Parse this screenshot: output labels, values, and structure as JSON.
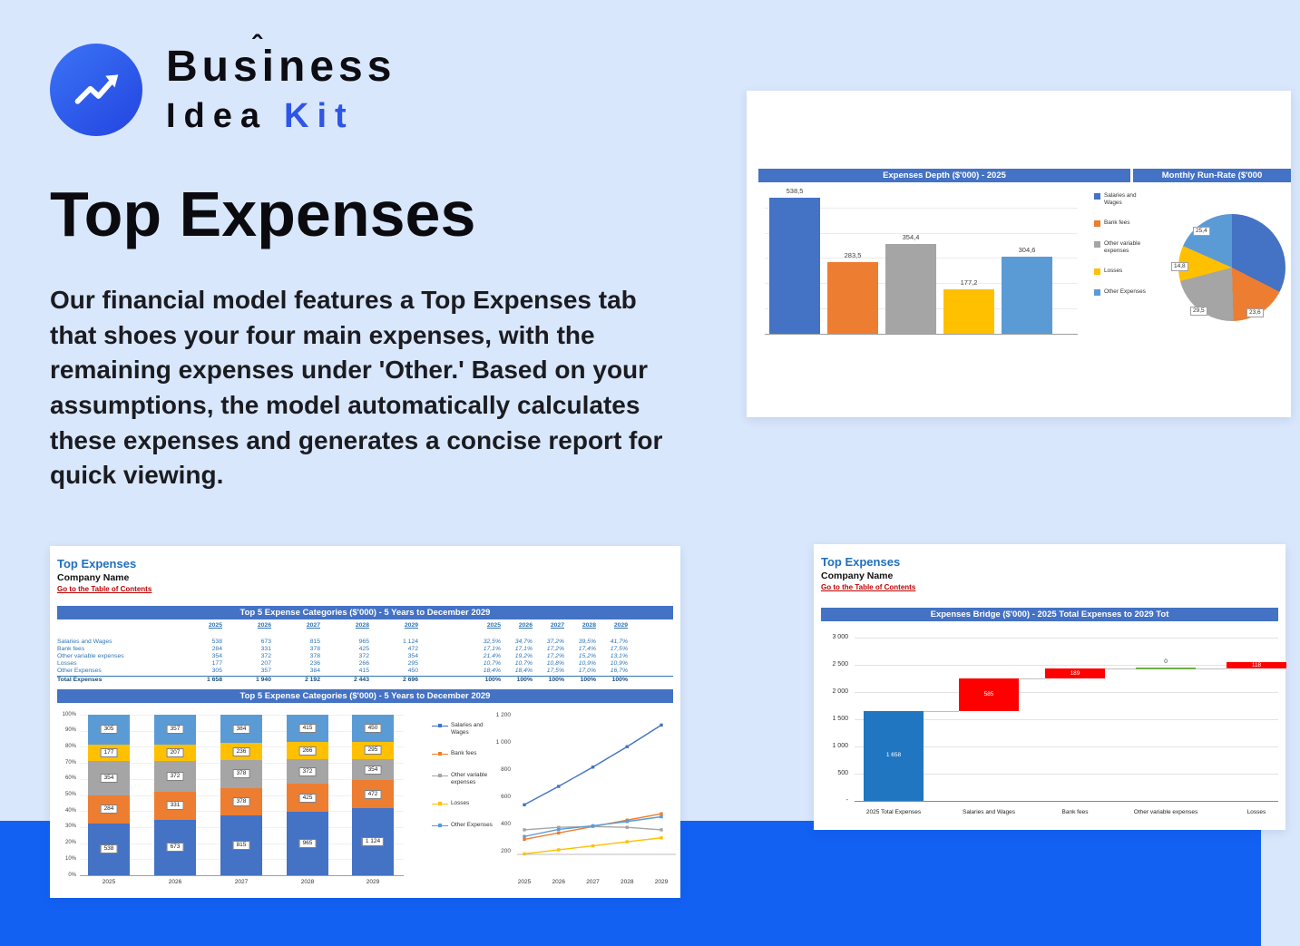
{
  "logo": {
    "word1": "Business",
    "caret": "ˆ",
    "word2": "Idea",
    "word3": "Kit"
  },
  "hero": {
    "heading": "Top Expenses",
    "paragraph": "Our financial model features a Top Expenses tab that shoes your four main expenses, with the remaining expenses under 'Other.' Based on your assumptions, the model automatically calculates these expenses and generates a concise report for quick viewing."
  },
  "sheet_common": {
    "title": "Top Expenses",
    "company": "Company Name",
    "toc": "Go to the Table of Contents"
  },
  "card_charts": {
    "header_left": "Expenses Depth ($'000) - 2025",
    "header_right": "Monthly Run-Rate ($'000"
  },
  "legend_items": [
    "Salaries and Wages",
    "Bank fees",
    "Other variable expenses",
    "Losses",
    "Other Expenses"
  ],
  "colors": {
    "series": [
      "#4472C4",
      "#ED7D31",
      "#A5A5A5",
      "#FFC000",
      "#5B9BD5"
    ],
    "band_blue": "#1261F3",
    "accent_blue": "#2F55E8",
    "header_bar": "#4472C4",
    "waterfall_total": "#2076C0",
    "waterfall_increase": "#FF0000",
    "waterfall_zero": "#70AD47",
    "toc_red": "#C00000",
    "sheet_title_blue": "#1F6FBF"
  },
  "sheet1": {
    "header_table": "Top 5 Expense Categories ($'000) - 5 Years to December 2029",
    "header_chart": "Top 5 Expense Categories ($'000) - 5 Years to December 2029",
    "years": [
      "2025",
      "2026",
      "2027",
      "2028",
      "2029"
    ],
    "rows": [
      {
        "label": "Salaries and Wages",
        "values": [
          "538",
          "673",
          "815",
          "965",
          "1 124"
        ],
        "pcts": [
          "32,5%",
          "34,7%",
          "37,2%",
          "39,5%",
          "41,7%"
        ]
      },
      {
        "label": "Bank fees",
        "values": [
          "284",
          "331",
          "378",
          "425",
          "472"
        ],
        "pcts": [
          "17,1%",
          "17,1%",
          "17,2%",
          "17,4%",
          "17,5%"
        ]
      },
      {
        "label": "Other variable expenses",
        "values": [
          "354",
          "372",
          "378",
          "372",
          "354"
        ],
        "pcts": [
          "21,4%",
          "19,2%",
          "17,2%",
          "15,2%",
          "13,1%"
        ]
      },
      {
        "label": "Losses",
        "values": [
          "177",
          "207",
          "236",
          "266",
          "295"
        ],
        "pcts": [
          "10,7%",
          "10,7%",
          "10,8%",
          "10,9%",
          "10,9%"
        ]
      },
      {
        "label": "Other Expenses",
        "values": [
          "305",
          "357",
          "384",
          "415",
          "450"
        ],
        "pcts": [
          "18,4%",
          "18,4%",
          "17,5%",
          "17,0%",
          "16,7%"
        ]
      }
    ],
    "total": {
      "label": "Total Expenses",
      "values": [
        "1 658",
        "1 940",
        "2 192",
        "2 443",
        "2 696"
      ],
      "pcts": [
        "100%",
        "100%",
        "100%",
        "100%",
        "100%"
      ]
    }
  },
  "sheet2": {
    "header_chart": "Expenses Bridge ($'000) - 2025 Total Expenses to 2029 Tot"
  },
  "chart_data": [
    {
      "id": "expenses_depth_2025",
      "type": "bar",
      "title": "Expenses Depth ($'000) - 2025",
      "categories": [
        "Salaries and Wages",
        "Bank fees",
        "Other variable expenses",
        "Losses",
        "Other Expenses"
      ],
      "values": [
        538.5,
        283.5,
        354.4,
        177.2,
        304.6
      ],
      "labels": [
        "538,5",
        "283,5",
        "354,4",
        "177,2",
        "304,6"
      ],
      "colors": [
        "#4472C4",
        "#ED7D31",
        "#A5A5A5",
        "#FFC000",
        "#5B9BD5"
      ],
      "ylim": [
        0,
        600
      ],
      "legend_position": "right",
      "grid": true
    },
    {
      "id": "monthly_run_rate",
      "type": "pie",
      "title": "Monthly Run-Rate ($'000",
      "categories": [
        "Salaries and Wages",
        "Bank fees",
        "Other variable expenses",
        "Losses",
        "Other Expenses"
      ],
      "values": [
        44.9,
        23.6,
        29.5,
        14.8,
        25.4
      ],
      "visible_labels": [
        "25,4",
        "14,8",
        "29,5",
        "23,6"
      ],
      "colors": [
        "#4472C4",
        "#ED7D31",
        "#A5A5A5",
        "#FFC000",
        "#5B9BD5"
      ]
    },
    {
      "id": "top5_stacked",
      "type": "bar",
      "stacked": true,
      "percent": true,
      "title": "Top 5 Expense Categories ($'000) - 5 Years to December 2029",
      "categories": [
        "2025",
        "2026",
        "2027",
        "2028",
        "2029"
      ],
      "series": [
        {
          "name": "Salaries and Wages",
          "color": "#4472C4",
          "values": [
            538,
            673,
            815,
            965,
            1124
          ],
          "labels": [
            "538",
            "673",
            "815",
            "965",
            "1 124"
          ]
        },
        {
          "name": "Bank fees",
          "color": "#ED7D31",
          "values": [
            284,
            331,
            378,
            425,
            472
          ],
          "labels": [
            "284",
            "331",
            "378",
            "425",
            "472"
          ]
        },
        {
          "name": "Other variable expenses",
          "color": "#A5A5A5",
          "values": [
            354,
            372,
            378,
            372,
            354
          ],
          "labels": [
            "354",
            "372",
            "378",
            "372",
            "354"
          ]
        },
        {
          "name": "Losses",
          "color": "#FFC000",
          "values": [
            177,
            207,
            236,
            266,
            295
          ],
          "labels": [
            "177",
            "207",
            "236",
            "266",
            "295"
          ]
        },
        {
          "name": "Other Expenses",
          "color": "#5B9BD5",
          "values": [
            305,
            357,
            384,
            415,
            450
          ],
          "labels": [
            "305",
            "357",
            "384",
            "415",
            "450"
          ]
        }
      ],
      "y_ticks": [
        "100%",
        "90%",
        "80%",
        "70%",
        "60%",
        "50%",
        "40%",
        "30%",
        "20%",
        "10%",
        "0%"
      ]
    },
    {
      "id": "top5_lines",
      "type": "line",
      "x": [
        "2025",
        "2026",
        "2027",
        "2028",
        "2029"
      ],
      "series": [
        {
          "name": "Salaries and Wages",
          "color": "#4472C4",
          "values": [
            538,
            673,
            815,
            965,
            1124
          ]
        },
        {
          "name": "Bank fees",
          "color": "#ED7D31",
          "values": [
            284,
            331,
            378,
            425,
            472
          ]
        },
        {
          "name": "Other variable expenses",
          "color": "#A5A5A5",
          "values": [
            354,
            372,
            378,
            372,
            354
          ]
        },
        {
          "name": "Losses",
          "color": "#FFC000",
          "values": [
            177,
            207,
            236,
            266,
            295
          ]
        },
        {
          "name": "Other Expenses",
          "color": "#5B9BD5",
          "values": [
            305,
            357,
            384,
            415,
            450
          ]
        }
      ],
      "y_ticks": [
        "1 200",
        "1 000",
        "800",
        "600",
        "400",
        "200"
      ],
      "ylim": [
        200,
        1200
      ]
    },
    {
      "id": "expenses_bridge",
      "type": "waterfall",
      "title": "Expenses Bridge ($'000) - 2025 Total Expenses to 2029 Tot",
      "categories": [
        "2025 Total Expenses",
        "Salaries and Wages",
        "Bank fees",
        "Other variable expenses",
        "Losses"
      ],
      "bars": [
        {
          "label": "1 658",
          "start": 0,
          "end": 1658,
          "color": "#2076C0",
          "kind": "total"
        },
        {
          "label": "585",
          "start": 1658,
          "end": 2243,
          "color": "#FF0000",
          "kind": "increase"
        },
        {
          "label": "189",
          "start": 2243,
          "end": 2432,
          "color": "#FF0000",
          "kind": "increase"
        },
        {
          "label": "0",
          "start": 2432,
          "end": 2432,
          "color": "#70AD47",
          "kind": "zero"
        },
        {
          "label": "118",
          "start": 2432,
          "end": 2550,
          "color": "#FF0000",
          "kind": "increase"
        }
      ],
      "y_ticks": [
        "3 000",
        "2 500",
        "2 000",
        "1 500",
        "1 000",
        "500",
        "-"
      ]
    }
  ]
}
